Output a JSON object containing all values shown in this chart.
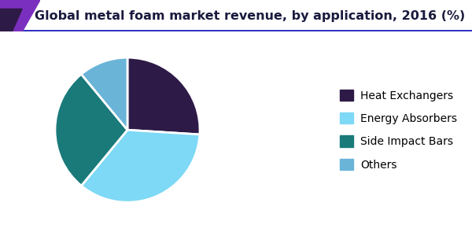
{
  "title": "Global metal foam market revenue, by application, 2016 (%)",
  "labels": [
    "Heat Exchangers",
    "Energy Absorbers",
    "Side Impact Bars",
    "Others"
  ],
  "values": [
    26,
    35,
    28,
    11
  ],
  "colors": [
    "#2e1a47",
    "#7dd9f5",
    "#1a7a7a",
    "#6ab4d8"
  ],
  "startangle": 90,
  "background_color": "#ffffff",
  "title_fontsize": 11.5,
  "legend_fontsize": 10,
  "wedge_edge_color": "#ffffff",
  "wedge_linewidth": 2,
  "header_bg": "#ffffff",
  "header_line_color": "#5b2d8e",
  "header_underline_color": "#3030c0",
  "corner_tri_color1": "#7b2fbe",
  "corner_tri_color2": "#2e1a47",
  "title_color": "#1a1a3e"
}
